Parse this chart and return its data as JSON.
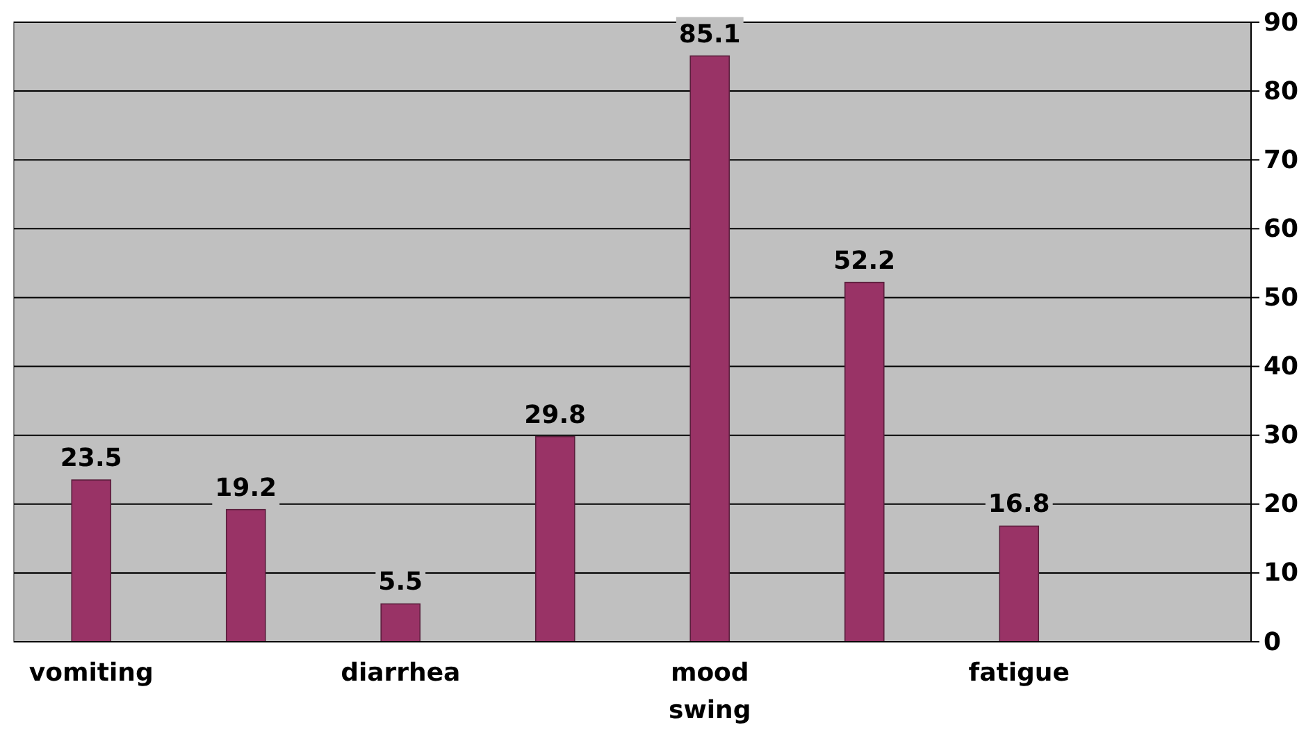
{
  "chart_data": {
    "type": "bar",
    "categories": [
      "vomiting",
      null,
      "diarrhea",
      null,
      "mood swing",
      null,
      "fatigue",
      null
    ],
    "values": [
      23.5,
      19.2,
      5.5,
      29.8,
      85.1,
      52.2,
      16.8,
      null
    ],
    "color": "#993366",
    "ylim": [
      0,
      90
    ],
    "yticks": [
      0,
      10,
      20,
      30,
      40,
      50,
      60,
      70,
      80,
      90
    ],
    "grid": "y",
    "data_labels": true
  }
}
